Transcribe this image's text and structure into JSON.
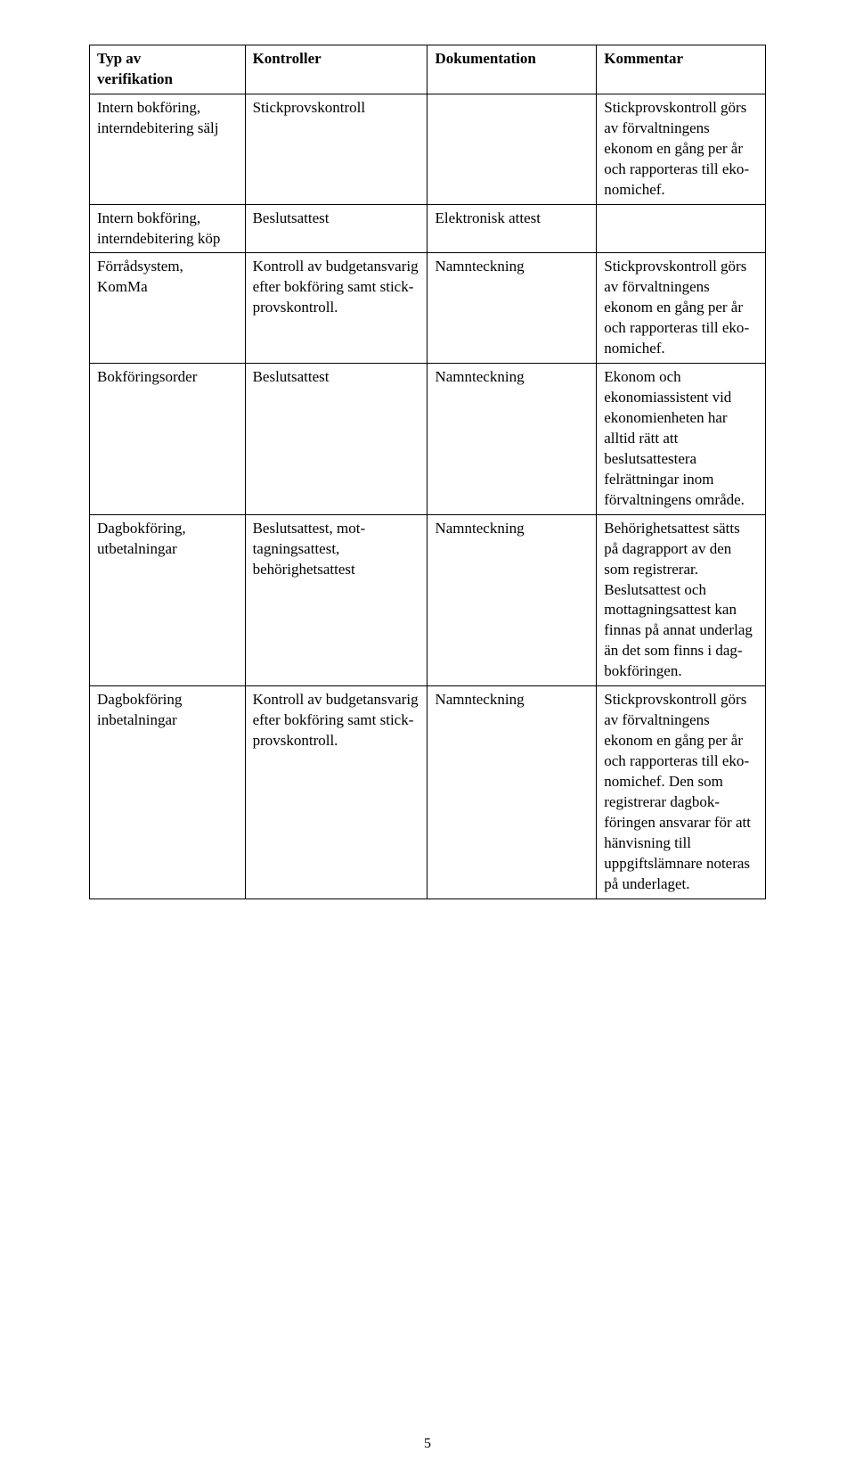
{
  "styling": {
    "page_bg": "#ffffff",
    "text_color": "#000000",
    "border_color": "#000000",
    "body_font": "Georgia, 'Times New Roman', serif",
    "font_size_pt": 12,
    "header_weight": "bold",
    "column_widths_pct": [
      23,
      27,
      25,
      25
    ]
  },
  "table": {
    "type": "table",
    "headers": {
      "c1a": "Typ av",
      "c1b": "verifikation",
      "c2": "Kontroller",
      "c3": "Dokumentation",
      "c4": "Kommentar"
    },
    "rows": {
      "r1": {
        "c1": "Intern bokföring, interndebitering sälj",
        "c2": "Stickprovskontroll",
        "c3": "",
        "c4": "Stickprovskontroll görs av förvalt­ningens ekonom en gång per år och rap­porteras till eko­nomichef."
      },
      "r2": {
        "c1": "Intern bokföring, interndebitering köp",
        "c2": "Beslutsattest",
        "c3": "Elektronisk attest",
        "c4": ""
      },
      "r3": {
        "c1": "Förrådsystem, KomMa",
        "c2": "Kontroll av budget­ansvarig efter bok­föring samt stick­provskontroll.",
        "c3": "Namnteckning",
        "c4": "Stickprovskontroll görs av förvalt­ningens ekonom en gång per år och rap­porteras till eko­nomichef."
      },
      "r4": {
        "c1": "Bokföringsorder",
        "c2": "Beslutsattest",
        "c3": "Namnteckning",
        "c4": "Ekonom och ekonomiassistent vid ekonomienheten har alltid rätt att beslutsattestera felrättningar inom förvaltningens område."
      },
      "r5": {
        "c1": "Dagbokföring, utbetalningar",
        "c2": "Beslutsattest, mot­tagningsattest, behörighetsattest",
        "c3": "Namnteckning",
        "c4": "Behörighetsattest sätts på dagrapport av den som registre­rar. Beslutsattest och mottagnings­attest kan finnas på annat underlag än det som finns i dag­bokföringen."
      },
      "r6": {
        "c1": "Dagbokföring inbetalningar",
        "c2": "Kontroll av budget­ansvarig efter bok­föring samt stick­provskontroll.",
        "c3": "Namnteckning",
        "c4": "Stickprovskontroll görs av förvalt­ningens ekonom en gång per år och rap­porteras till eko­nomichef. Den som registrerar dagbok­föringen ansvarar för att hänvisning till uppgiftslämnare noteras på under­laget."
      }
    }
  },
  "page_number": "5"
}
